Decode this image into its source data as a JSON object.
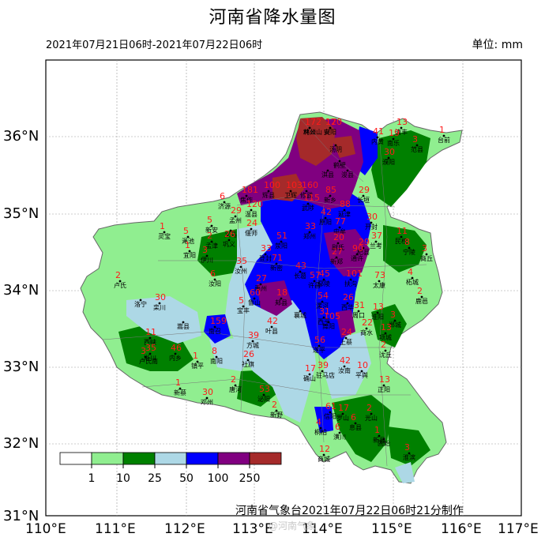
{
  "title": "河南省降水量图",
  "period": "2021年07月21日06时-2021年07月22日06时",
  "unit_label": "单位: mm",
  "credit": "河南省气象台2021年07月22日06时21分制作",
  "watermark": "@河南气象",
  "lat_labels": [
    "36°N",
    "35°N",
    "34°N",
    "33°N",
    "32°N",
    "31°N"
  ],
  "lon_labels": [
    "110°E",
    "111°E",
    "112°E",
    "113°E",
    "114°E",
    "115°E",
    "116°E",
    "117°E"
  ],
  "legend": {
    "breaks": [
      "1",
      "10",
      "25",
      "50",
      "100",
      "250"
    ],
    "colors": [
      "#ffffff",
      "#90ee90",
      "#008000",
      "#add8e6",
      "#0000ff",
      "#800080",
      "#a52a2a"
    ]
  },
  "cities": [
    {
      "name": "林州",
      "value": "172"
    },
    {
      "name": "安阳",
      "value": "170"
    },
    {
      "name": "汤阴",
      "value": ""
    },
    {
      "name": "内黄",
      "value": "41"
    },
    {
      "name": "清丰",
      "value": "13"
    },
    {
      "name": "南乐",
      "value": "19"
    },
    {
      "name": "范县",
      "value": "3"
    },
    {
      "name": "台前",
      "value": "1"
    },
    {
      "name": "鹤壁",
      "value": ""
    },
    {
      "name": "濮阳",
      "value": "30"
    },
    {
      "name": "淇县",
      "value": ""
    },
    {
      "name": "浚县",
      "value": ""
    },
    {
      "name": "辉县",
      "value": "100"
    },
    {
      "name": "卫辉",
      "value": "103"
    },
    {
      "name": "新乡",
      "value": "85"
    },
    {
      "name": "长垣",
      "value": "29"
    },
    {
      "name": "延津",
      "value": "88"
    },
    {
      "name": "焦作",
      "value": "181"
    },
    {
      "name": "修武",
      "value": "160"
    },
    {
      "name": "济源",
      "value": "6"
    },
    {
      "name": "孟州",
      "value": "29"
    },
    {
      "name": "温县",
      "value": "120"
    },
    {
      "name": "武陟",
      "value": "115"
    },
    {
      "name": "原阳",
      "value": "42"
    },
    {
      "name": "灵宝",
      "value": "1"
    },
    {
      "name": "渑池",
      "value": "5"
    },
    {
      "name": "义马",
      "value": ""
    },
    {
      "name": "新安",
      "value": "5"
    },
    {
      "name": "孟津",
      "value": "2"
    },
    {
      "name": "偃师",
      "value": "24"
    },
    {
      "name": "巩义",
      "value": "26"
    },
    {
      "name": "荥阳",
      "value": "51"
    },
    {
      "name": "郑州",
      "value": "33"
    },
    {
      "name": "中牟",
      "value": "77"
    },
    {
      "name": "开封",
      "value": "30"
    },
    {
      "name": "兰考",
      "value": "37"
    },
    {
      "name": "杞县",
      "value": "29"
    },
    {
      "name": "民权",
      "value": "11"
    },
    {
      "name": "宁陵",
      "value": "8"
    },
    {
      "name": "商丘",
      "value": "3"
    },
    {
      "name": "宜阳",
      "value": "1"
    },
    {
      "name": "伊川",
      "value": "3"
    },
    {
      "name": "汝阳",
      "value": "6"
    },
    {
      "name": "汝州",
      "value": "35"
    },
    {
      "name": "登封",
      "value": "33"
    },
    {
      "name": "新密",
      "value": "71"
    },
    {
      "name": "新郑",
      "value": "27"
    },
    {
      "name": "长葛",
      "value": "43"
    },
    {
      "name": "尉氏",
      "value": "20"
    },
    {
      "name": "通许",
      "value": "90"
    },
    {
      "name": "扶沟",
      "value": "101"
    },
    {
      "name": "鄢陵",
      "value": "45"
    },
    {
      "name": "许昌",
      "value": "57"
    },
    {
      "name": "禹州",
      "value": "27"
    },
    {
      "name": "太康",
      "value": "73"
    },
    {
      "name": "柘城",
      "value": "4"
    },
    {
      "name": "鹿邑",
      "value": "2"
    },
    {
      "name": "卢氏",
      "value": "2"
    },
    {
      "name": "洛宁",
      "value": ""
    },
    {
      "name": "栾川",
      "value": "30"
    },
    {
      "name": "嵩县",
      "value": ""
    },
    {
      "name": "鲁山",
      "value": "60"
    },
    {
      "name": "宝丰",
      "value": "5"
    },
    {
      "name": "郏县",
      "value": "18"
    },
    {
      "name": "襄城",
      "value": ""
    },
    {
      "name": "漯河",
      "value": "54"
    },
    {
      "name": "西华",
      "value": "26"
    },
    {
      "name": "周口",
      "value": "31"
    },
    {
      "name": "淮阳",
      "value": "13"
    },
    {
      "name": "郸城",
      "value": "3"
    },
    {
      "name": "叶县",
      "value": "42"
    },
    {
      "name": "舞阳",
      "value": "105"
    },
    {
      "name": "商水",
      "value": "22"
    },
    {
      "name": "项城",
      "value": "13"
    },
    {
      "name": "沈丘",
      "value": "2"
    },
    {
      "name": "方城",
      "value": "39"
    },
    {
      "name": "南召",
      "value": "159"
    },
    {
      "name": "西峡",
      "value": "11"
    },
    {
      "name": "卢氏南",
      "value": "3"
    },
    {
      "name": "西平",
      "value": "31"
    },
    {
      "name": "上蔡",
      "value": "24"
    },
    {
      "name": "遂平",
      "value": "56"
    },
    {
      "name": "汝南",
      "value": "42"
    },
    {
      "name": "平舆",
      "value": "10"
    },
    {
      "name": "淅川",
      "value": "35"
    },
    {
      "name": "内乡",
      "value": "46"
    },
    {
      "name": "镇平",
      "value": "1"
    },
    {
      "name": "南阳",
      "value": "8"
    },
    {
      "name": "社旗",
      "value": "26"
    },
    {
      "name": "唐河",
      "value": "2"
    },
    {
      "name": "泌阳",
      "value": "53"
    },
    {
      "name": "确山",
      "value": "17"
    },
    {
      "name": "驻马店",
      "value": "39"
    },
    {
      "name": "正阳",
      "value": "13"
    },
    {
      "name": "新蔡",
      "value": "1"
    },
    {
      "name": "邓州",
      "value": "30"
    },
    {
      "name": "新野",
      "value": "2"
    },
    {
      "name": "桐柏",
      "value": "4"
    },
    {
      "name": "信阳",
      "value": "61"
    },
    {
      "name": "罗山",
      "value": "17"
    },
    {
      "name": "息县",
      "value": "6"
    },
    {
      "name": "潢川",
      "value": "6"
    },
    {
      "name": "光山",
      "value": "2"
    },
    {
      "name": "淮滨",
      "value": "3"
    },
    {
      "name": "固始",
      "value": ""
    },
    {
      "name": "商城",
      "value": "12"
    },
    {
      "name": "新县",
      "value": "1"
    },
    {
      "name": "鸡公山",
      "value": ""
    },
    {
      "name": "兴",
      "value": "12"
    }
  ]
}
